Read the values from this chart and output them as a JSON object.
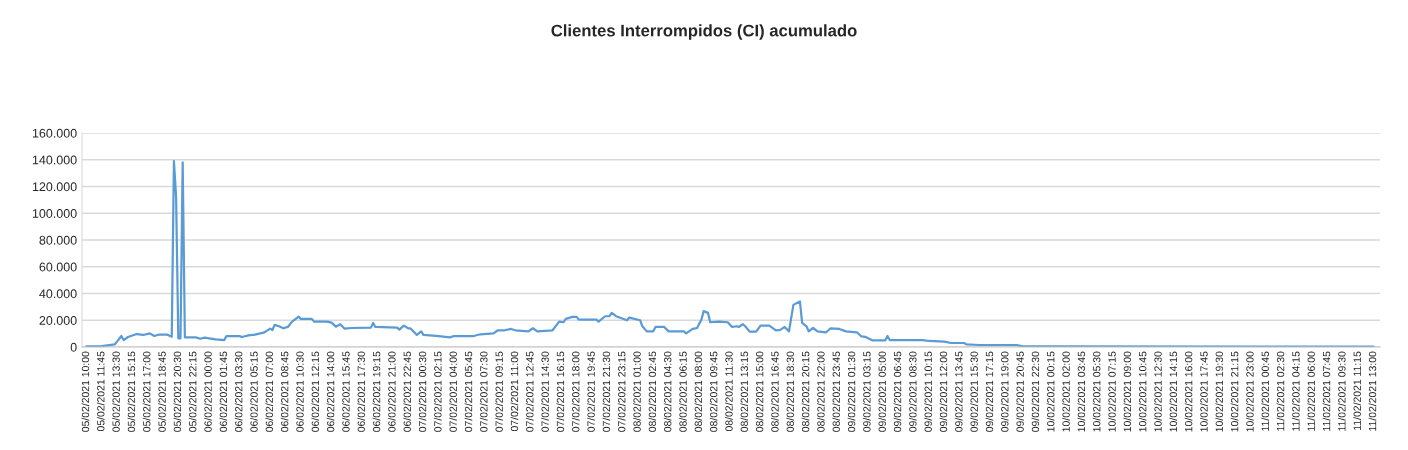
{
  "chart_data": {
    "type": "line",
    "title": "Clientes Interrompidos (CI) acumulado",
    "x": [
      "2021-02-05T10:00",
      "2021-02-05T11:45",
      "2021-02-05T13:15",
      "2021-02-05T13:30",
      "2021-02-05T14:00",
      "2021-02-05T14:15",
      "2021-02-05T14:45",
      "2021-02-05T15:45",
      "2021-02-05T16:30",
      "2021-02-05T17:15",
      "2021-02-05T17:45",
      "2021-02-05T18:15",
      "2021-02-05T19:15",
      "2021-02-05T19:45",
      "2021-02-05T20:00",
      "2021-02-05T20:15",
      "2021-02-05T20:30",
      "2021-02-05T20:45",
      "2021-02-05T21:00",
      "2021-02-05T21:15",
      "2021-02-05T22:30",
      "2021-02-05T23:00",
      "2021-02-05T23:30",
      "2021-02-06T00:45",
      "2021-02-06T01:45",
      "2021-02-06T02:00",
      "2021-02-06T03:30",
      "2021-02-06T03:45",
      "2021-02-06T04:30",
      "2021-02-06T05:15",
      "2021-02-06T06:15",
      "2021-02-06T07:00",
      "2021-02-06T07:15",
      "2021-02-06T07:30",
      "2021-02-06T08:00",
      "2021-02-06T08:30",
      "2021-02-06T09:00",
      "2021-02-06T09:30",
      "2021-02-06T10:15",
      "2021-02-06T10:30",
      "2021-02-06T11:45",
      "2021-02-06T12:00",
      "2021-02-06T13:30",
      "2021-02-06T14:00",
      "2021-02-06T14:30",
      "2021-02-06T15:00",
      "2021-02-06T15:30",
      "2021-02-06T16:15",
      "2021-02-06T18:30",
      "2021-02-06T18:45",
      "2021-02-06T19:00",
      "2021-02-06T21:30",
      "2021-02-06T21:45",
      "2021-02-06T22:15",
      "2021-02-06T22:45",
      "2021-02-06T23:00",
      "2021-02-06T23:45",
      "2021-02-07T00:15",
      "2021-02-07T00:30",
      "2021-02-07T02:15",
      "2021-02-07T03:30",
      "2021-02-07T04:00",
      "2021-02-07T06:15",
      "2021-02-07T07:00",
      "2021-02-07T08:30",
      "2021-02-07T09:00",
      "2021-02-07T09:45",
      "2021-02-07T10:30",
      "2021-02-07T11:00",
      "2021-02-07T12:30",
      "2021-02-07T13:00",
      "2021-02-07T13:30",
      "2021-02-07T15:15",
      "2021-02-07T16:00",
      "2021-02-07T16:30",
      "2021-02-07T16:45",
      "2021-02-07T17:30",
      "2021-02-07T18:00",
      "2021-02-07T18:15",
      "2021-02-07T20:15",
      "2021-02-07T20:30",
      "2021-02-07T21:15",
      "2021-02-07T21:45",
      "2021-02-07T22:00",
      "2021-02-07T22:30",
      "2021-02-07T23:45",
      "2021-02-08T00:00",
      "2021-02-08T01:15",
      "2021-02-08T01:30",
      "2021-02-08T02:00",
      "2021-02-08T02:45",
      "2021-02-08T03:00",
      "2021-02-08T04:00",
      "2021-02-08T04:30",
      "2021-02-08T06:15",
      "2021-02-08T06:30",
      "2021-02-08T07:15",
      "2021-02-08T07:45",
      "2021-02-08T08:15",
      "2021-02-08T08:30",
      "2021-02-08T09:00",
      "2021-02-08T09:15",
      "2021-02-08T10:15",
      "2021-02-08T11:15",
      "2021-02-08T11:45",
      "2021-02-08T12:15",
      "2021-02-08T12:30",
      "2021-02-08T13:00",
      "2021-02-08T13:15",
      "2021-02-08T13:45",
      "2021-02-08T14:30",
      "2021-02-08T15:00",
      "2021-02-08T16:00",
      "2021-02-08T16:45",
      "2021-02-08T17:15",
      "2021-02-08T17:45",
      "2021-02-08T18:15",
      "2021-02-08T18:45",
      "2021-02-08T19:30",
      "2021-02-08T19:45",
      "2021-02-08T20:15",
      "2021-02-08T20:30",
      "2021-02-08T21:00",
      "2021-02-08T21:30",
      "2021-02-08T22:30",
      "2021-02-08T23:00",
      "2021-02-09T00:00",
      "2021-02-09T00:45",
      "2021-02-09T02:00",
      "2021-02-09T02:30",
      "2021-02-09T03:00",
      "2021-02-09T03:45",
      "2021-02-09T05:15",
      "2021-02-09T05:30",
      "2021-02-09T05:45",
      "2021-02-09T09:30",
      "2021-02-09T10:15",
      "2021-02-09T12:00",
      "2021-02-09T12:45",
      "2021-02-09T14:15",
      "2021-02-09T14:30",
      "2021-02-09T16:00",
      "2021-02-09T20:15",
      "2021-02-09T21:00",
      "2021-02-10T01:15",
      "2021-02-11T13:00"
    ],
    "series": [
      {
        "color": "#5b9bd5",
        "values": [
          500,
          750,
          2000,
          4000,
          8200,
          5200,
          7500,
          9700,
          9000,
          10200,
          8200,
          9200,
          9200,
          7700,
          139000,
          112000,
          6500,
          6500,
          138000,
          7200,
          7200,
          6200,
          7000,
          5700,
          5200,
          8200,
          8200,
          7500,
          8700,
          9200,
          10700,
          13700,
          12700,
          16500,
          15500,
          14000,
          15000,
          19000,
          22700,
          21000,
          21000,
          19000,
          19000,
          18200,
          15200,
          17000,
          13700,
          14200,
          14500,
          18000,
          15000,
          14500,
          13000,
          16000,
          14000,
          14000,
          9000,
          11700,
          9000,
          8200,
          7200,
          8200,
          8200,
          9500,
          10200,
          12500,
          12500,
          13500,
          12500,
          11700,
          14000,
          11700,
          12500,
          19000,
          18500,
          21000,
          22500,
          22500,
          20500,
          20500,
          19000,
          23000,
          23000,
          25500,
          23000,
          20000,
          22000,
          20000,
          15500,
          11700,
          11700,
          15000,
          15000,
          11700,
          11700,
          10200,
          13500,
          14200,
          20500,
          26800,
          25500,
          18500,
          19000,
          18500,
          15000,
          15500,
          15000,
          17000,
          15500,
          11500,
          11500,
          16000,
          16000,
          12500,
          12800,
          15000,
          11700,
          31500,
          34000,
          18000,
          15500,
          11700,
          14200,
          11700,
          11000,
          14000,
          13500,
          11700,
          11000,
          8000,
          7500,
          5000,
          5000,
          8200,
          5200,
          5200,
          4500,
          4000,
          3000,
          3000,
          2000,
          1500,
          1500,
          500,
          500,
          300
        ]
      }
    ],
    "xlim": [
      "2021-02-05T09:30",
      "2021-02-11T13:45"
    ],
    "ylim": [
      0,
      160000
    ],
    "yticks": [
      0,
      {
        "value": 20000,
        "label": "20.000"
      },
      {
        "value": 40000,
        "label": "40.000"
      },
      {
        "value": 60000,
        "label": "60.000"
      },
      {
        "value": 80000,
        "label": "80.000"
      },
      {
        "value": 100000,
        "label": "100.000"
      },
      {
        "value": 120000,
        "label": "120.000"
      },
      {
        "value": 140000,
        "label": "140.000"
      },
      {
        "value": 160000,
        "label": "160.000"
      }
    ],
    "xticks": [
      {
        "value": "2021-02-05T10:00",
        "label": "05/02/2021 10:00"
      },
      {
        "value": "2021-02-05T11:45",
        "label": "05/02/2021 11:45"
      },
      {
        "value": "2021-02-05T13:30",
        "label": "05/02/2021 13:30"
      },
      {
        "value": "2021-02-05T15:15",
        "label": "05/02/2021 15:15"
      },
      {
        "value": "2021-02-05T17:00",
        "label": "05/02/2021 17:00"
      },
      {
        "value": "2021-02-05T18:45",
        "label": "05/02/2021 18:45"
      },
      {
        "value": "2021-02-05T20:30",
        "label": "05/02/2021 20:30"
      },
      {
        "value": "2021-02-05T22:15",
        "label": "05/02/2021 22:15"
      },
      {
        "value": "2021-02-06T00:00",
        "label": "06/02/2021 00:00"
      },
      {
        "value": "2021-02-06T01:45",
        "label": "06/02/2021 01:45"
      },
      {
        "value": "2021-02-06T03:30",
        "label": "06/02/2021 03:30"
      },
      {
        "value": "2021-02-06T05:15",
        "label": "06/02/2021 05:15"
      },
      {
        "value": "2021-02-06T07:00",
        "label": "06/02/2021 07:00"
      },
      {
        "value": "2021-02-06T08:45",
        "label": "06/02/2021 08:45"
      },
      {
        "value": "2021-02-06T10:30",
        "label": "06/02/2021 10:30"
      },
      {
        "value": "2021-02-06T12:15",
        "label": "06/02/2021 12:15"
      },
      {
        "value": "2021-02-06T14:00",
        "label": "06/02/2021 14:00"
      },
      {
        "value": "2021-02-06T15:45",
        "label": "06/02/2021 15:45"
      },
      {
        "value": "2021-02-06T17:30",
        "label": "06/02/2021 17:30"
      },
      {
        "value": "2021-02-06T19:15",
        "label": "06/02/2021 19:15"
      },
      {
        "value": "2021-02-06T21:00",
        "label": "06/02/2021 21:00"
      },
      {
        "value": "2021-02-06T22:45",
        "label": "06/02/2021 22:45"
      },
      {
        "value": "2021-02-07T00:30",
        "label": "07/02/2021 00:30"
      },
      {
        "value": "2021-02-07T02:15",
        "label": "07/02/2021 02:15"
      },
      {
        "value": "2021-02-07T04:00",
        "label": "07/02/2021 04:00"
      },
      {
        "value": "2021-02-07T05:45",
        "label": "07/02/2021 05:45"
      },
      {
        "value": "2021-02-07T07:30",
        "label": "07/02/2021 07:30"
      },
      {
        "value": "2021-02-07T09:15",
        "label": "07/02/2021 09:15"
      },
      {
        "value": "2021-02-07T11:00",
        "label": "07/02/2021 11:00"
      },
      {
        "value": "2021-02-07T12:45",
        "label": "07/02/2021 12:45"
      },
      {
        "value": "2021-02-07T14:30",
        "label": "07/02/2021 14:30"
      },
      {
        "value": "2021-02-07T16:15",
        "label": "07/02/2021 16:15"
      },
      {
        "value": "2021-02-07T18:00",
        "label": "07/02/2021 18:00"
      },
      {
        "value": "2021-02-07T19:45",
        "label": "07/02/2021 19:45"
      },
      {
        "value": "2021-02-07T21:30",
        "label": "07/02/2021 21:30"
      },
      {
        "value": "2021-02-07T23:15",
        "label": "07/02/2021 23:15"
      },
      {
        "value": "2021-02-08T01:00",
        "label": "08/02/2021 01:00"
      },
      {
        "value": "2021-02-08T02:45",
        "label": "08/02/2021 02:45"
      },
      {
        "value": "2021-02-08T04:30",
        "label": "08/02/2021 04:30"
      },
      {
        "value": "2021-02-08T06:15",
        "label": "08/02/2021 06:15"
      },
      {
        "value": "2021-02-08T08:00",
        "label": "08/02/2021 08:00"
      },
      {
        "value": "2021-02-08T09:45",
        "label": "08/02/2021 09:45"
      },
      {
        "value": "2021-02-08T11:30",
        "label": "08/02/2021 11:30"
      },
      {
        "value": "2021-02-08T13:15",
        "label": "08/02/2021 13:15"
      },
      {
        "value": "2021-02-08T15:00",
        "label": "08/02/2021 15:00"
      },
      {
        "value": "2021-02-08T16:45",
        "label": "08/02/2021 16:45"
      },
      {
        "value": "2021-02-08T18:30",
        "label": "08/02/2021 18:30"
      },
      {
        "value": "2021-02-08T20:15",
        "label": "08/02/2021 20:15"
      },
      {
        "value": "2021-02-08T22:00",
        "label": "08/02/2021 22:00"
      },
      {
        "value": "2021-02-08T23:45",
        "label": "08/02/2021 23:45"
      },
      {
        "value": "2021-02-09T01:30",
        "label": "09/02/2021 01:30"
      },
      {
        "value": "2021-02-09T03:15",
        "label": "09/02/2021 03:15"
      },
      {
        "value": "2021-02-09T05:00",
        "label": "09/02/2021 05:00"
      },
      {
        "value": "2021-02-09T06:45",
        "label": "09/02/2021 06:45"
      },
      {
        "value": "2021-02-09T08:30",
        "label": "09/02/2021 08:30"
      },
      {
        "value": "2021-02-09T10:15",
        "label": "09/02/2021 10:15"
      },
      {
        "value": "2021-02-09T12:00",
        "label": "09/02/2021 12:00"
      },
      {
        "value": "2021-02-09T13:45",
        "label": "09/02/2021 13:45"
      },
      {
        "value": "2021-02-09T15:30",
        "label": "09/02/2021 15:30"
      },
      {
        "value": "2021-02-09T17:15",
        "label": "09/02/2021 17:15"
      },
      {
        "value": "2021-02-09T19:00",
        "label": "09/02/2021 19:00"
      },
      {
        "value": "2021-02-09T20:45",
        "label": "09/02/2021 20:45"
      },
      {
        "value": "2021-02-09T22:30",
        "label": "09/02/2021 22:30"
      },
      {
        "value": "2021-02-10T00:15",
        "label": "10/02/2021 00:15"
      },
      {
        "value": "2021-02-10T02:00",
        "label": "10/02/2021 02:00"
      },
      {
        "value": "2021-02-10T03:45",
        "label": "10/02/2021 03:45"
      },
      {
        "value": "2021-02-10T05:30",
        "label": "10/02/2021 05:30"
      },
      {
        "value": "2021-02-10T07:15",
        "label": "10/02/2021 07:15"
      },
      {
        "value": "2021-02-10T09:00",
        "label": "10/02/2021 09:00"
      },
      {
        "value": "2021-02-10T10:45",
        "label": "10/02/2021 10:45"
      },
      {
        "value": "2021-02-10T12:30",
        "label": "10/02/2021 12:30"
      },
      {
        "value": "2021-02-10T14:15",
        "label": "10/02/2021 14:15"
      },
      {
        "value": "2021-02-10T16:00",
        "label": "10/02/2021 16:00"
      },
      {
        "value": "2021-02-10T17:45",
        "label": "10/02/2021 17:45"
      },
      {
        "value": "2021-02-10T19:30",
        "label": "10/02/2021 19:30"
      },
      {
        "value": "2021-02-10T21:15",
        "label": "10/02/2021 21:15"
      },
      {
        "value": "2021-02-10T23:00",
        "label": "10/02/2021 23:00"
      },
      {
        "value": "2021-02-11T00:45",
        "label": "11/02/2021 00:45"
      },
      {
        "value": "2021-02-11T02:30",
        "label": "11/02/2021 02:30"
      },
      {
        "value": "2021-02-11T04:15",
        "label": "11/02/2021 04:15"
      },
      {
        "value": "2021-02-11T06:00",
        "label": "11/02/2021 06:00"
      },
      {
        "value": "2021-02-11T07:45",
        "label": "11/02/2021 07:45"
      },
      {
        "value": "2021-02-11T09:30",
        "label": "11/02/2021 09:30"
      },
      {
        "value": "2021-02-11T11:15",
        "label": "11/02/2021 11:15"
      },
      {
        "value": "2021-02-11T13:00",
        "label": "11/02/2021 13:00"
      }
    ],
    "grid": "y",
    "marker": "none",
    "line_style": "solid"
  }
}
